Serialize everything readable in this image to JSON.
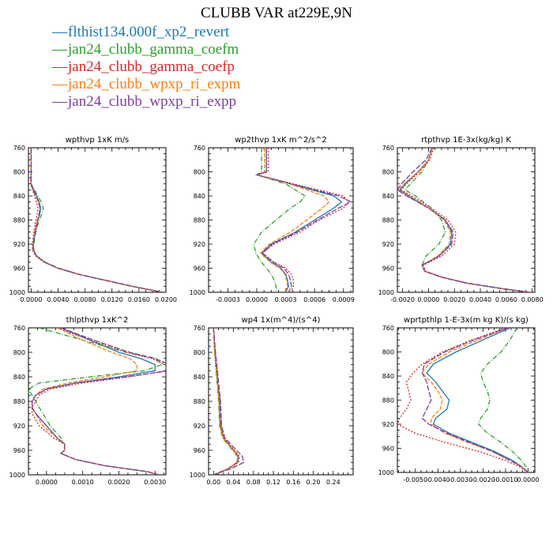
{
  "title": "CLUBB VAR at229E,9N",
  "legend": [
    {
      "name": "flthist134.000f_xp2_revert",
      "color": "#1f77b4",
      "dash": ""
    },
    {
      "name": "jan24_clubb_gamma_coefm",
      "color": "#2ca02c",
      "dash": "6,2,1,2"
    },
    {
      "name": "jan24_clubb_gamma_coefp",
      "color": "#d62728",
      "dash": "2,2"
    },
    {
      "name": "jan24_clubb_wpxp_ri_expm",
      "color": "#ff7f0e",
      "dash": "5,2"
    },
    {
      "name": "jan24_clubb_wpxp_ri_expp",
      "color": "#7b3fa0",
      "dash": "7,2"
    }
  ],
  "chart_data": [
    {
      "type": "line",
      "title": "wpthvp  1xK m/s",
      "xlim": [
        -0.0004,
        0.02
      ],
      "ylim": [
        760,
        1000
      ],
      "xticks": [
        "0.0000",
        "0.0040",
        "0.0080",
        "0.0120",
        "0.0160",
        "0.0200"
      ],
      "xtick_values": [
        0.0,
        0.004,
        0.008,
        0.012,
        0.016,
        0.02
      ],
      "yticks": [
        "760",
        "800",
        "840",
        "880",
        "920",
        "960",
        "1000"
      ],
      "y": [
        760,
        780,
        800,
        820,
        830,
        840,
        850,
        860,
        870,
        880,
        900,
        920,
        930,
        940,
        950,
        960,
        970,
        980,
        990,
        1000
      ],
      "series": [
        {
          "values": [
            0.0,
            0.0,
            0.0,
            0.0,
            0.0004,
            0.0008,
            0.0012,
            0.0014,
            0.0013,
            0.001,
            0.0006,
            0.0003,
            0.0003,
            0.0008,
            0.002,
            0.004,
            0.007,
            0.011,
            0.015,
            0.0195
          ]
        },
        {
          "values": [
            0.0,
            0.0,
            0.0,
            0.0,
            0.0005,
            0.001,
            0.0015,
            0.0018,
            0.0016,
            0.0012,
            0.0007,
            0.0004,
            0.0004,
            0.0009,
            0.0021,
            0.0041,
            0.0071,
            0.0111,
            0.0151,
            0.0196
          ]
        },
        {
          "values": [
            0.0,
            0.0,
            0.0,
            -0.0001,
            0.0002,
            0.0005,
            0.0008,
            0.001,
            0.0009,
            0.0007,
            0.0004,
            0.0002,
            0.0002,
            0.0007,
            0.0019,
            0.0039,
            0.0069,
            0.0109,
            0.0149,
            0.0194
          ]
        },
        {
          "values": [
            0.0,
            0.0,
            0.0,
            0.0,
            0.0003,
            0.0007,
            0.0011,
            0.0013,
            0.0012,
            0.0009,
            0.0005,
            0.0003,
            0.0003,
            0.0008,
            0.002,
            0.004,
            0.007,
            0.011,
            0.015,
            0.0195
          ]
        },
        {
          "values": [
            0.0,
            0.0,
            0.0,
            0.0,
            0.0003,
            0.0007,
            0.0011,
            0.0013,
            0.0012,
            0.001,
            0.0006,
            0.0003,
            0.0003,
            0.0008,
            0.002,
            0.004,
            0.007,
            0.011,
            0.015,
            0.0195
          ]
        }
      ]
    },
    {
      "type": "line",
      "title": "wp2thvp  1xK m^2/s^2",
      "xlim": [
        -0.0005,
        0.001
      ],
      "ylim": [
        760,
        1000
      ],
      "xticks": [
        "-0.0003",
        "0.0000",
        "0.0003",
        "0.0006",
        "0.0009"
      ],
      "xtick_values": [
        -0.0003,
        0.0,
        0.0003,
        0.0006,
        0.0009
      ],
      "yticks": [
        "760",
        "800",
        "840",
        "880",
        "920",
        "960",
        "1000"
      ],
      "y": [
        760,
        780,
        800,
        805,
        820,
        840,
        850,
        860,
        880,
        900,
        920,
        935,
        950,
        960,
        970,
        980,
        990,
        1000
      ],
      "series": [
        {
          "values": [
            0.0001,
            0.0001,
            0.0001,
            0.0,
            0.00035,
            0.0008,
            0.00088,
            0.0008,
            0.0006,
            0.0004,
            0.00015,
            5e-05,
            0.00015,
            0.00025,
            0.0003,
            0.00032,
            0.00033,
            0.0003
          ]
        },
        {
          "values": [
            5e-05,
            5e-05,
            5e-05,
            0.0,
            0.0003,
            0.0005,
            0.00045,
            0.00035,
            0.0002,
            5e-05,
            -3e-05,
            -1e-05,
            5e-05,
            0.0001,
            0.00015,
            0.00018,
            0.0002,
            0.0002
          ]
        },
        {
          "values": [
            0.00012,
            0.00012,
            0.00012,
            0.0,
            0.00038,
            0.0009,
            0.00095,
            0.0009,
            0.00065,
            0.00045,
            0.00018,
            6e-05,
            0.00018,
            0.0003,
            0.00036,
            0.00038,
            0.00038,
            0.00035
          ]
        },
        {
          "values": [
            8e-05,
            8e-05,
            8e-05,
            0.0,
            0.00034,
            0.0007,
            0.00075,
            0.00068,
            0.00052,
            0.00035,
            0.00013,
            4e-05,
            0.00014,
            0.00024,
            0.00029,
            0.00031,
            0.00032,
            0.00029
          ]
        },
        {
          "values": [
            0.0001,
            0.0001,
            0.0001,
            0.0,
            0.00036,
            0.00085,
            0.00098,
            0.00085,
            0.00063,
            0.00042,
            0.00016,
            6e-05,
            0.00017,
            0.00028,
            0.00033,
            0.00035,
            0.00036,
            0.00033
          ]
        }
      ]
    },
    {
      "type": "line",
      "title": "rtpthvp  1E-3x(kg/kg) K",
      "xlim": [
        -0.0024,
        0.0082
      ],
      "ylim": [
        760,
        1000
      ],
      "xticks": [
        "-0.0020",
        "0.0000",
        "0.0020",
        "0.0040",
        "0.0060",
        "0.0080"
      ],
      "xtick_values": [
        -0.002,
        0.0,
        0.002,
        0.004,
        0.006,
        0.008
      ],
      "yticks": [
        "760",
        "800",
        "840",
        "880",
        "920",
        "960",
        "1000"
      ],
      "y": [
        760,
        780,
        800,
        820,
        830,
        840,
        860,
        880,
        900,
        920,
        940,
        955,
        965,
        975,
        985,
        995,
        1000
      ],
      "series": [
        {
          "values": [
            0.0003,
            0.0,
            -0.0008,
            -0.0018,
            -0.0022,
            -0.0015,
            0.0,
            0.0013,
            0.0018,
            0.0017,
            0.0008,
            -0.0005,
            -0.0003,
            0.001,
            0.003,
            0.006,
            0.0078
          ]
        },
        {
          "values": [
            0.0003,
            0.0,
            -0.0005,
            -0.0014,
            -0.0018,
            -0.001,
            0.0002,
            0.001,
            0.0013,
            0.0008,
            -0.0002,
            -0.0005,
            -0.0003,
            0.001,
            0.003,
            0.006,
            0.0078
          ]
        },
        {
          "values": [
            0.0004,
            0.0001,
            -0.0007,
            -0.0017,
            -0.0021,
            -0.0013,
            0.0002,
            0.0015,
            0.0021,
            0.002,
            0.001,
            -0.0004,
            -0.0002,
            0.0011,
            0.0031,
            0.0061,
            0.0079
          ]
        },
        {
          "values": [
            0.0003,
            0.0,
            -0.0008,
            -0.0019,
            -0.0023,
            -0.0016,
            0.0,
            0.0012,
            0.0017,
            0.0016,
            0.0007,
            -0.0005,
            -0.0003,
            0.001,
            0.003,
            0.006,
            0.0078
          ]
        },
        {
          "values": [
            0.0003,
            -0.0002,
            -0.0012,
            -0.0021,
            -0.0024,
            -0.0017,
            0.0,
            0.0013,
            0.0019,
            0.0018,
            0.0008,
            -0.0005,
            -0.0003,
            0.001,
            0.003,
            0.006,
            0.0078
          ]
        }
      ]
    },
    {
      "type": "line",
      "title": "thlpthvp  1xK^2",
      "xlim": [
        -0.0005,
        0.0033
      ],
      "ylim": [
        760,
        1000
      ],
      "xticks": [
        "0.0000",
        "0.0010",
        "0.0020",
        "0.0030"
      ],
      "xtick_values": [
        0.0,
        0.001,
        0.002,
        0.003
      ],
      "yticks": [
        "760",
        "800",
        "840",
        "880",
        "920",
        "960",
        "1000"
      ],
      "y": [
        760,
        780,
        800,
        810,
        820,
        830,
        840,
        850,
        860,
        870,
        880,
        890,
        900,
        920,
        940,
        950,
        960,
        965,
        975,
        985,
        995,
        1000
      ],
      "series": [
        {
          "values": [
            0.0004,
            0.0012,
            0.002,
            0.0026,
            0.003,
            0.003,
            0.002,
            0.0008,
            0.0,
            -0.0003,
            -0.0004,
            -0.0004,
            -0.0003,
            0.0,
            0.0003,
            0.0005,
            0.0005,
            0.0004,
            0.0008,
            0.0016,
            0.0028,
            0.0031
          ]
        },
        {
          "values": [
            -0.0002,
            0.001,
            0.0022,
            0.003,
            0.0032,
            0.0027,
            0.0012,
            -0.0002,
            -0.0005,
            -0.0004,
            -0.0003,
            -0.0002,
            -0.0001,
            0.0001,
            0.0004,
            0.0005,
            0.0005,
            0.0004,
            0.0008,
            0.0016,
            0.0028,
            0.0031
          ]
        },
        {
          "values": [
            0.0003,
            0.0012,
            0.0022,
            0.0029,
            0.0033,
            0.0033,
            0.0023,
            0.001,
            0.0001,
            -0.0002,
            -0.0003,
            -0.0004,
            -0.0004,
            -0.0002,
            0.0002,
            0.0005,
            0.0005,
            0.0004,
            0.0008,
            0.0016,
            0.0028,
            0.0031
          ]
        },
        {
          "values": [
            0.0003,
            0.001,
            0.0018,
            0.0023,
            0.0025,
            0.0025,
            0.0016,
            0.0006,
            -0.0001,
            -0.0003,
            -0.0004,
            -0.0004,
            -0.0003,
            -0.0001,
            0.0003,
            0.0005,
            0.0005,
            0.0004,
            0.0008,
            0.0016,
            0.0028,
            0.0031
          ]
        },
        {
          "values": [
            0.0004,
            0.0013,
            0.0023,
            0.003,
            0.0034,
            0.0034,
            0.0022,
            0.0008,
            0.0,
            -0.0003,
            -0.0004,
            -0.0004,
            -0.0003,
            0.0,
            0.0003,
            0.0005,
            0.0005,
            0.0004,
            0.0008,
            0.0016,
            0.0028,
            0.0031
          ]
        }
      ]
    },
    {
      "type": "line",
      "title": "wp4  1x(m^4)/(s^4)",
      "xlim": [
        -0.01,
        0.28
      ],
      "ylim": [
        760,
        1000
      ],
      "xticks": [
        "0.00",
        "0.04",
        "0.08",
        "0.12",
        "0.16",
        "0.20",
        "0.24"
      ],
      "xtick_values": [
        0.0,
        0.04,
        0.08,
        0.12,
        0.16,
        0.2,
        0.24
      ],
      "yticks": [
        "760",
        "800",
        "840",
        "880",
        "920",
        "960",
        "1000"
      ],
      "y": [
        760,
        800,
        840,
        880,
        900,
        920,
        940,
        960,
        970,
        980,
        990,
        1000
      ],
      "series": [
        {
          "values": [
            0.0,
            0.003,
            0.007,
            0.012,
            0.013,
            0.014,
            0.02,
            0.04,
            0.05,
            0.048,
            0.03,
            0.0
          ]
        },
        {
          "values": [
            0.0,
            0.002,
            0.006,
            0.01,
            0.011,
            0.012,
            0.018,
            0.038,
            0.048,
            0.046,
            0.028,
            0.0
          ]
        },
        {
          "values": [
            0.0,
            0.003,
            0.008,
            0.013,
            0.014,
            0.015,
            0.021,
            0.042,
            0.052,
            0.05,
            0.031,
            0.0
          ]
        },
        {
          "values": [
            0.0,
            0.002,
            0.007,
            0.011,
            0.012,
            0.013,
            0.019,
            0.039,
            0.049,
            0.047,
            0.029,
            0.0
          ]
        },
        {
          "values": [
            0.0,
            0.004,
            0.009,
            0.014,
            0.015,
            0.016,
            0.023,
            0.046,
            0.058,
            0.06,
            0.035,
            0.0
          ]
        }
      ]
    },
    {
      "type": "line",
      "title": "wprtpthlp  1-E-3x(m kg K)/(s kg)",
      "xlim": [
        -0.0058,
        0.0003
      ],
      "ylim": [
        760,
        1000
      ],
      "xticks": [
        "-0.0050",
        "-0.0040",
        "-0.0030",
        "-0.0020",
        "-0.0010",
        "0.0000"
      ],
      "xtick_values": [
        -0.005,
        -0.004,
        -0.003,
        -0.002,
        -0.001,
        0.0
      ],
      "yticks": [
        "760",
        "800",
        "840",
        "880",
        "920",
        "960",
        "1000"
      ],
      "y": [
        760,
        780,
        800,
        820,
        835,
        850,
        865,
        880,
        895,
        910,
        920,
        935,
        950,
        965,
        980,
        990,
        1000
      ],
      "series": [
        {
          "values": [
            -0.0008,
            -0.002,
            -0.0032,
            -0.0042,
            -0.0045,
            -0.0041,
            -0.0038,
            -0.0035,
            -0.0036,
            -0.0041,
            -0.0042,
            -0.0035,
            -0.0025,
            -0.0015,
            -0.0007,
            -0.0003,
            0.0
          ]
        },
        {
          "values": [
            -0.0005,
            -0.0008,
            -0.0012,
            -0.0018,
            -0.0021,
            -0.002,
            -0.0018,
            -0.0017,
            -0.0018,
            -0.0021,
            -0.0022,
            -0.0018,
            -0.0012,
            -0.0007,
            -0.0003,
            -0.0001,
            0.0
          ]
        },
        {
          "values": [
            -0.001,
            -0.0025,
            -0.0038,
            -0.0047,
            -0.0051,
            -0.0054,
            -0.0053,
            -0.0052,
            -0.0054,
            -0.0057,
            -0.0058,
            -0.005,
            -0.0037,
            -0.0022,
            -0.001,
            -0.0004,
            0.0
          ]
        },
        {
          "values": [
            -0.0009,
            -0.0022,
            -0.0035,
            -0.0044,
            -0.0047,
            -0.0043,
            -0.004,
            -0.0038,
            -0.0039,
            -0.0043,
            -0.0043,
            -0.0037,
            -0.0027,
            -0.0016,
            -0.0008,
            -0.0003,
            0.0
          ]
        },
        {
          "values": [
            -0.0009,
            -0.0024,
            -0.0037,
            -0.0046,
            -0.0047,
            -0.0045,
            -0.0044,
            -0.0043,
            -0.0045,
            -0.0047,
            -0.0044,
            -0.0036,
            -0.0026,
            -0.0016,
            -0.0008,
            -0.0003,
            0.0
          ]
        }
      ]
    }
  ]
}
